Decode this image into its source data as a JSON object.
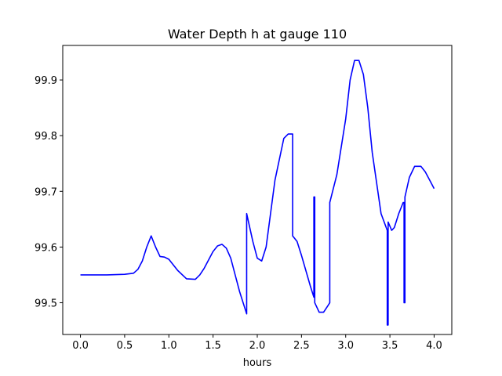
{
  "chart_data": {
    "type": "line",
    "title": "Water Depth h at gauge 110",
    "xlabel": "hours",
    "ylabel": "",
    "xlim": [
      -0.2,
      4.2
    ],
    "ylim": [
      99.443,
      99.962
    ],
    "xticks": [
      0.0,
      0.5,
      1.0,
      1.5,
      2.0,
      2.5,
      3.0,
      3.5,
      4.0
    ],
    "xtick_labels": [
      "0.0",
      "0.5",
      "1.0",
      "1.5",
      "2.0",
      "2.5",
      "3.0",
      "3.5",
      "4.0"
    ],
    "yticks": [
      99.5,
      99.6,
      99.7,
      99.8,
      99.9
    ],
    "ytick_labels": [
      "99.5",
      "99.6",
      "99.7",
      "99.8",
      "99.9"
    ],
    "grid": false,
    "series": [
      {
        "color": "#0000ff",
        "x": [
          0.0,
          0.3,
          0.5,
          0.6,
          0.65,
          0.7,
          0.75,
          0.8,
          0.85,
          0.9,
          0.95,
          1.0,
          1.05,
          1.1,
          1.2,
          1.3,
          1.35,
          1.4,
          1.5,
          1.55,
          1.6,
          1.65,
          1.7,
          1.75,
          1.8,
          1.88,
          1.88,
          1.95,
          2.0,
          2.05,
          2.1,
          2.2,
          2.3,
          2.35,
          2.4,
          2.4,
          2.45,
          2.5,
          2.6,
          2.64,
          2.64,
          2.65,
          2.65,
          2.7,
          2.75,
          2.8,
          2.82,
          2.82,
          2.9,
          3.0,
          3.05,
          3.1,
          3.15,
          3.2,
          3.25,
          3.3,
          3.4,
          3.47,
          3.47,
          3.48,
          3.48,
          3.52,
          3.55,
          3.6,
          3.65,
          3.66,
          3.66,
          3.67,
          3.67,
          3.72,
          3.78,
          3.85,
          3.9,
          3.95,
          4.0
        ],
        "y": [
          99.55,
          99.55,
          99.551,
          99.553,
          99.56,
          99.575,
          99.6,
          99.62,
          99.6,
          99.583,
          99.582,
          99.578,
          99.568,
          99.558,
          99.543,
          99.542,
          99.55,
          99.562,
          99.592,
          99.602,
          99.605,
          99.598,
          99.58,
          99.55,
          99.52,
          99.48,
          99.66,
          99.61,
          99.58,
          99.575,
          99.6,
          99.72,
          99.795,
          99.803,
          99.803,
          99.62,
          99.61,
          99.585,
          99.53,
          99.51,
          99.69,
          99.69,
          99.5,
          99.483,
          99.483,
          99.495,
          99.5,
          99.68,
          99.73,
          99.83,
          99.9,
          99.935,
          99.935,
          99.91,
          99.85,
          99.77,
          99.66,
          99.63,
          99.46,
          99.46,
          99.645,
          99.63,
          99.635,
          99.66,
          99.68,
          99.68,
          99.5,
          99.5,
          99.69,
          99.725,
          99.745,
          99.745,
          99.735,
          99.72,
          99.705
        ]
      }
    ]
  }
}
